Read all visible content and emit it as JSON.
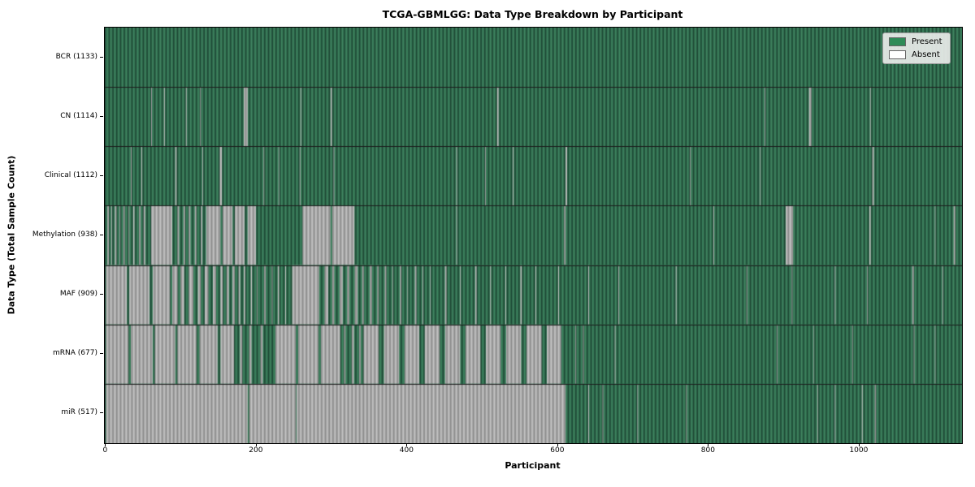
{
  "chart_data": {
    "type": "heatmap",
    "title": "TCGA-GBMLGG: Data Type Breakdown by Participant",
    "xlabel": "Participant",
    "ylabel": "Data Type (Total Sample Count)",
    "x_ticks": [
      0,
      200,
      400,
      600,
      800,
      1000
    ],
    "x_range": [
      -1.5,
      1136
    ],
    "total_participants": 1133,
    "legend_position": "upper right",
    "legend": [
      {
        "label": "Present",
        "color": "#2e8b57"
      },
      {
        "label": "Absent",
        "color": "#ffffff"
      }
    ],
    "rows": [
      {
        "data_type": "BCR",
        "label": "BCR (1133)",
        "present_count": 1133,
        "absent_ranges": []
      },
      {
        "data_type": "CN",
        "label": "CN (1114)",
        "present_count": 1114,
        "absent_ranges": [
          [
            60,
            61
          ],
          [
            77,
            78
          ],
          [
            106,
            107
          ],
          [
            125,
            126
          ],
          [
            183,
            188
          ],
          [
            258,
            259
          ],
          [
            298,
            300
          ],
          [
            519,
            521
          ],
          [
            874,
            875
          ],
          [
            933,
            936
          ],
          [
            1014,
            1015
          ]
        ]
      },
      {
        "data_type": "Clinical",
        "label": "Clinical (1112)",
        "present_count": 1112,
        "absent_ranges": [
          [
            33,
            34
          ],
          [
            47,
            48
          ],
          [
            92,
            94
          ],
          [
            128,
            129
          ],
          [
            151,
            154
          ],
          [
            209,
            210
          ],
          [
            229,
            230
          ],
          [
            257,
            258
          ],
          [
            302,
            303
          ],
          [
            465,
            466
          ],
          [
            503,
            504
          ],
          [
            540,
            541
          ],
          [
            610,
            612
          ],
          [
            775,
            776
          ],
          [
            868,
            869
          ],
          [
            1017,
            1019
          ]
        ]
      },
      {
        "data_type": "Methylation",
        "label": "Methylation (938)",
        "present_count": 938,
        "absent_ranges": [
          [
            2,
            4
          ],
          [
            7,
            8
          ],
          [
            12,
            14
          ],
          [
            18,
            19
          ],
          [
            23,
            25
          ],
          [
            30,
            31
          ],
          [
            36,
            38
          ],
          [
            44,
            46
          ],
          [
            50,
            52
          ],
          [
            60,
            88
          ],
          [
            95,
            97
          ],
          [
            103,
            105
          ],
          [
            110,
            112
          ],
          [
            118,
            120
          ],
          [
            126,
            128
          ],
          [
            133,
            152
          ],
          [
            155,
            168
          ],
          [
            171,
            184
          ],
          [
            188,
            199
          ],
          [
            261,
            298
          ],
          [
            300,
            330
          ],
          [
            465,
            466
          ],
          [
            608,
            610
          ],
          [
            806,
            807
          ],
          [
            902,
            912
          ],
          [
            1013,
            1015
          ],
          [
            1100,
            1101
          ],
          [
            1125,
            1127
          ]
        ]
      },
      {
        "data_type": "MAF",
        "label": "MAF (909)",
        "present_count": 909,
        "absent_ranges": [
          [
            0,
            28
          ],
          [
            31,
            58
          ],
          [
            62,
            85
          ],
          [
            88,
            95
          ],
          [
            99,
            104
          ],
          [
            110,
            116
          ],
          [
            122,
            126
          ],
          [
            131,
            136
          ],
          [
            142,
            146
          ],
          [
            152,
            155
          ],
          [
            160,
            163
          ],
          [
            168,
            171
          ],
          [
            176,
            178
          ],
          [
            183,
            185
          ],
          [
            192,
            194
          ],
          [
            200,
            201
          ],
          [
            210,
            212
          ],
          [
            220,
            221
          ],
          [
            228,
            230
          ],
          [
            238,
            239
          ],
          [
            247,
            283
          ],
          [
            290,
            295
          ],
          [
            300,
            303
          ],
          [
            310,
            314
          ],
          [
            320,
            323
          ],
          [
            330,
            334
          ],
          [
            340,
            342
          ],
          [
            350,
            353
          ],
          [
            360,
            362
          ],
          [
            370,
            372
          ],
          [
            380,
            381
          ],
          [
            390,
            392
          ],
          [
            400,
            401
          ],
          [
            410,
            412
          ],
          [
            420,
            421
          ],
          [
            430,
            431
          ],
          [
            450,
            452
          ],
          [
            470,
            471
          ],
          [
            490,
            492
          ],
          [
            510,
            511
          ],
          [
            530,
            531
          ],
          [
            550,
            552
          ],
          [
            570,
            571
          ],
          [
            600,
            601
          ],
          [
            640,
            641
          ],
          [
            680,
            681
          ],
          [
            756,
            757
          ],
          [
            850,
            851
          ],
          [
            910,
            911
          ],
          [
            967,
            968
          ],
          [
            1010,
            1011
          ],
          [
            1070,
            1072
          ],
          [
            1110,
            1111
          ]
        ]
      },
      {
        "data_type": "mRNA",
        "label": "mRNA (677)",
        "present_count": 677,
        "absent_ranges": [
          [
            0,
            30
          ],
          [
            33,
            62
          ],
          [
            65,
            92
          ],
          [
            95,
            120
          ],
          [
            124,
            148
          ],
          [
            152,
            170
          ],
          [
            178,
            181
          ],
          [
            190,
            193
          ],
          [
            205,
            208
          ],
          [
            225,
            252
          ],
          [
            255,
            282
          ],
          [
            285,
            311
          ],
          [
            316,
            318
          ],
          [
            326,
            329
          ],
          [
            336,
            338
          ],
          [
            342,
            362
          ],
          [
            369,
            389
          ],
          [
            396,
            416
          ],
          [
            423,
            443
          ],
          [
            450,
            470
          ],
          [
            477,
            497
          ],
          [
            504,
            524
          ],
          [
            531,
            551
          ],
          [
            558,
            578
          ],
          [
            585,
            604
          ],
          [
            623,
            624
          ],
          [
            633,
            634
          ],
          [
            675,
            676
          ],
          [
            890,
            891
          ],
          [
            939,
            940
          ],
          [
            990,
            991
          ],
          [
            1072,
            1073
          ],
          [
            1100,
            1101
          ]
        ]
      },
      {
        "data_type": "miR",
        "label": "miR (517)",
        "present_count": 517,
        "absent_ranges": [
          [
            0,
            188
          ],
          [
            190,
            252
          ],
          [
            253,
            610
          ],
          [
            640,
            641
          ],
          [
            659,
            660
          ],
          [
            705,
            706
          ],
          [
            770,
            771
          ],
          [
            944,
            945
          ],
          [
            967,
            968
          ],
          [
            1003,
            1004
          ],
          [
            1020,
            1022
          ]
        ]
      }
    ],
    "render_colors": {
      "present_base": "#336f50",
      "present_dark": "#1e4a36",
      "present_light": "#3f8461",
      "absent_base": "#ababab",
      "absent_dark": "#8d8d8d",
      "absent_light": "#c3c3c3",
      "row_separator": "#1c1c1c",
      "stripe_period": 4.67
    }
  }
}
